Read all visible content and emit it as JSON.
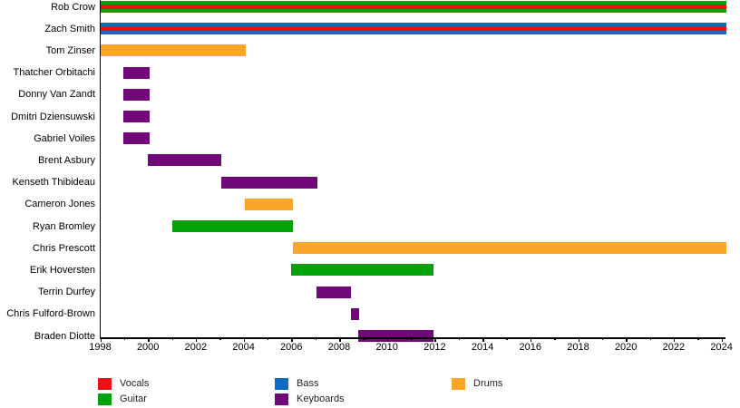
{
  "chart_data": {
    "type": "timeline",
    "title": "",
    "description": "Band members timeline gantt chart",
    "x_axis": {
      "start": 1998,
      "end": 2024,
      "major_ticks": [
        1998,
        2000,
        2002,
        2004,
        2006,
        2008,
        2010,
        2012,
        2014,
        2016,
        2018,
        2020,
        2022,
        2024
      ],
      "minor_ticks": [
        1999,
        2001,
        2003,
        2005,
        2007,
        2009,
        2011,
        2013,
        2015,
        2017,
        2019,
        2021,
        2023
      ]
    },
    "roles": {
      "Vocals": "#EE1111",
      "Guitar": "#00A40A",
      "Bass": "#0D6BC6",
      "Keyboards": "#700878",
      "Drums": "#FAA428"
    },
    "legend": [
      {
        "label": "Vocals",
        "role": "Vocals"
      },
      {
        "label": "Guitar",
        "role": "Guitar"
      },
      {
        "label": "Bass",
        "role": "Bass"
      },
      {
        "label": "Keyboards",
        "role": "Keyboards"
      },
      {
        "label": "Drums",
        "role": "Drums"
      }
    ],
    "present_value": 2024.2,
    "members": [
      {
        "name": "Rob Crow",
        "bars": [
          {
            "role": "Guitar",
            "start": 1998,
            "end": "present"
          },
          {
            "role": "Vocals",
            "start": 1998,
            "end": "present",
            "stripe": true
          }
        ]
      },
      {
        "name": "Zach Smith",
        "bars": [
          {
            "role": "Bass",
            "start": 1998,
            "end": "present"
          },
          {
            "role": "Vocals",
            "start": 1998,
            "end": "present",
            "stripe": true
          }
        ]
      },
      {
        "name": "Tom Zinser",
        "bars": [
          {
            "role": "Drums",
            "start": 1998,
            "end": 2004.1
          }
        ]
      },
      {
        "name": "Thatcher Orbitachi",
        "bars": [
          {
            "role": "Keyboards",
            "start": 1998.95,
            "end": 2000.05
          }
        ]
      },
      {
        "name": "Donny Van Zandt",
        "bars": [
          {
            "role": "Keyboards",
            "start": 1998.95,
            "end": 2000.05
          }
        ]
      },
      {
        "name": "Dmitri Dziensuwski",
        "bars": [
          {
            "role": "Keyboards",
            "start": 1998.95,
            "end": 2000.05
          }
        ]
      },
      {
        "name": "Gabriel Voiles",
        "bars": [
          {
            "role": "Keyboards",
            "start": 1998.95,
            "end": 2000.05
          }
        ]
      },
      {
        "name": "Brent Asbury",
        "bars": [
          {
            "role": "Keyboards",
            "start": 2000,
            "end": 2003.05
          }
        ]
      },
      {
        "name": "Kenseth Thibideau",
        "bars": [
          {
            "role": "Keyboards",
            "start": 2003.05,
            "end": 2007.1
          }
        ]
      },
      {
        "name": "Cameron Jones",
        "bars": [
          {
            "role": "Drums",
            "start": 2004.05,
            "end": 2006.05
          }
        ]
      },
      {
        "name": "Ryan Bromley",
        "bars": [
          {
            "role": "Guitar",
            "start": 2001,
            "end": 2006.05
          }
        ]
      },
      {
        "name": "Chris Prescott",
        "bars": [
          {
            "role": "Drums",
            "start": 2006.05,
            "end": "present"
          }
        ]
      },
      {
        "name": "Erik Hoversten",
        "bars": [
          {
            "role": "Guitar",
            "start": 2006,
            "end": 2011.95
          }
        ]
      },
      {
        "name": "Terrin Durfey",
        "bars": [
          {
            "role": "Keyboards",
            "start": 2007.05,
            "end": 2008.5
          }
        ]
      },
      {
        "name": "Chris Fulford-Brown",
        "bars": [
          {
            "role": "Keyboards",
            "start": 2008.5,
            "end": 2008.85
          }
        ]
      },
      {
        "name": "Braden Diotte",
        "bars": [
          {
            "role": "Keyboards",
            "start": 2008.8,
            "end": 2011.95
          }
        ]
      }
    ]
  }
}
